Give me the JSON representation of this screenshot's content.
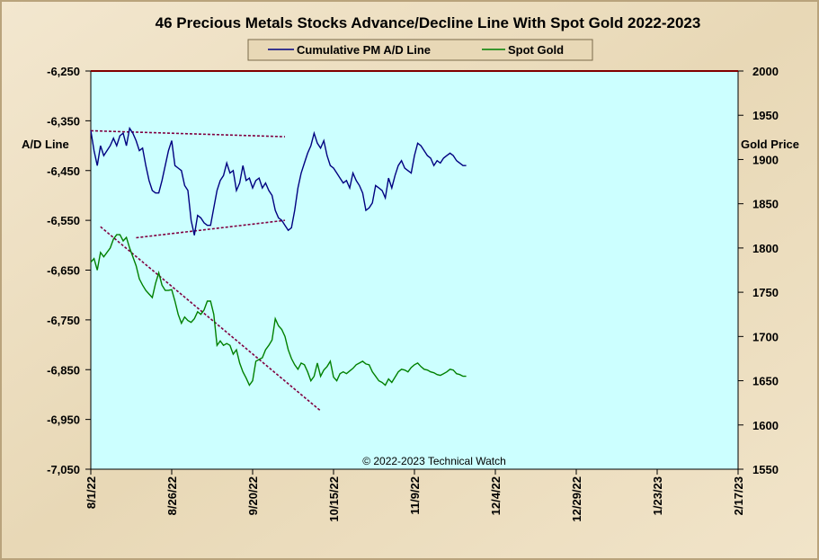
{
  "chart_data": {
    "type": "line",
    "title": "46 Precious Metals Stocks Advance/Decline Line With Spot Gold 2022-2023",
    "ylabel_left": "A/D Line",
    "ylabel_right": "Gold Price",
    "ylim_left": [
      -7050,
      -6250
    ],
    "ylim_right": [
      1550,
      2000
    ],
    "yticks_left": [
      "-6,250",
      "-6,350",
      "-6,450",
      "-6,550",
      "-6,650",
      "-6,750",
      "-6,850",
      "-6,950",
      "-7,050"
    ],
    "yticks_right": [
      "2000",
      "1950",
      "1900",
      "1850",
      "1800",
      "1750",
      "1700",
      "1650",
      "1600",
      "1550"
    ],
    "xticks": [
      "8/1/22",
      "8/26/22",
      "9/20/22",
      "10/15/22",
      "11/9/22",
      "12/4/22",
      "12/29/22",
      "1/23/23",
      "2/17/23"
    ],
    "legend_position": "top-center",
    "copyright": "© 2022-2023  Technical Watch",
    "colors": {
      "plot_bg": "#ccffff",
      "ad_line": "#000080",
      "gold_line": "#008000",
      "trend": "#800040",
      "frame_bg": "#f0e3c8"
    },
    "series": [
      {
        "name": "Cumulative PM A/D Line",
        "axis": "left",
        "x": [
          0,
          1,
          2,
          3,
          4,
          5,
          6,
          7,
          8,
          9,
          10,
          11,
          12,
          13,
          14,
          15,
          16,
          17,
          18,
          19,
          20,
          21,
          22,
          23,
          24,
          25,
          26,
          27,
          28,
          29,
          30,
          31,
          32,
          33,
          34,
          35,
          36,
          37,
          38,
          39,
          40,
          41,
          42,
          43,
          44,
          45,
          46,
          47,
          48,
          49,
          50,
          51,
          52,
          53,
          54,
          55,
          56,
          57,
          58,
          59,
          60,
          61,
          62,
          63,
          64,
          65,
          66,
          67,
          68,
          69,
          70,
          71,
          72,
          73,
          74,
          75,
          76,
          77,
          78,
          79,
          80,
          81,
          82,
          83,
          84,
          85,
          86,
          87,
          88,
          89,
          90,
          91,
          92,
          93,
          94,
          95,
          96,
          97,
          98,
          99,
          100,
          101,
          102,
          103,
          104,
          105,
          106,
          107,
          108,
          109,
          110,
          111,
          112,
          113,
          114,
          115,
          116
        ],
        "y": [
          -6370,
          -6410,
          -6440,
          -6400,
          -6420,
          -6410,
          -6400,
          -6385,
          -6400,
          -6380,
          -6375,
          -6400,
          -6365,
          -6375,
          -6390,
          -6410,
          -6405,
          -6440,
          -6470,
          -6490,
          -6495,
          -6495,
          -6470,
          -6440,
          -6410,
          -6390,
          -6440,
          -6445,
          -6450,
          -6480,
          -6490,
          -6550,
          -6580,
          -6540,
          -6545,
          -6555,
          -6560,
          -6560,
          -6525,
          -6490,
          -6470,
          -6460,
          -6435,
          -6455,
          -6450,
          -6490,
          -6475,
          -6440,
          -6470,
          -6465,
          -6485,
          -6470,
          -6465,
          -6485,
          -6475,
          -6490,
          -6500,
          -6530,
          -6545,
          -6550,
          -6560,
          -6570,
          -6565,
          -6530,
          -6485,
          -6455,
          -6435,
          -6415,
          -6400,
          -6375,
          -6395,
          -6405,
          -6390,
          -6420,
          -6440,
          -6445,
          -6455,
          -6465,
          -6475,
          -6470,
          -6485,
          -6455,
          -6470,
          -6480,
          -6495,
          -6530,
          -6525,
          -6515,
          -6480,
          -6485,
          -6490,
          -6505,
          -6465,
          -6485,
          -6460,
          -6440,
          -6430,
          -6445,
          -6450,
          -6455,
          -6420,
          -6395,
          -6400,
          -6410,
          -6420,
          -6425,
          -6440,
          -6430,
          -6435,
          -6425,
          -6420,
          -6415,
          -6420,
          -6430,
          -6435,
          -6440,
          -6440
        ]
      },
      {
        "name": "Spot Gold",
        "axis": "right",
        "x": [
          0,
          1,
          2,
          3,
          4,
          5,
          6,
          7,
          8,
          9,
          10,
          11,
          12,
          13,
          14,
          15,
          16,
          17,
          18,
          19,
          20,
          21,
          22,
          23,
          24,
          25,
          26,
          27,
          28,
          29,
          30,
          31,
          32,
          33,
          34,
          35,
          36,
          37,
          38,
          39,
          40,
          41,
          42,
          43,
          44,
          45,
          46,
          47,
          48,
          49,
          50,
          51,
          52,
          53,
          54,
          55,
          56,
          57,
          58,
          59,
          60,
          61,
          62,
          63,
          64,
          65,
          66,
          67,
          68,
          69,
          70,
          71,
          72,
          73,
          74,
          75,
          76,
          77,
          78,
          79,
          80,
          81,
          82,
          83,
          84,
          85,
          86,
          87,
          88,
          89,
          90,
          91,
          92,
          93,
          94,
          95,
          96,
          97,
          98,
          99,
          100,
          101,
          102,
          103,
          104,
          105,
          106,
          107,
          108,
          109,
          110,
          111,
          112,
          113,
          114,
          115,
          116
        ],
        "y": [
          1784,
          1788,
          1775,
          1795,
          1790,
          1795,
          1800,
          1810,
          1815,
          1815,
          1808,
          1812,
          1800,
          1790,
          1780,
          1765,
          1758,
          1752,
          1748,
          1744,
          1760,
          1772,
          1758,
          1752,
          1752,
          1753,
          1740,
          1725,
          1715,
          1722,
          1718,
          1716,
          1720,
          1728,
          1725,
          1730,
          1740,
          1740,
          1725,
          1690,
          1695,
          1690,
          1692,
          1690,
          1680,
          1685,
          1670,
          1660,
          1653,
          1645,
          1650,
          1672,
          1674,
          1676,
          1685,
          1690,
          1696,
          1720,
          1712,
          1708,
          1700,
          1685,
          1675,
          1668,
          1663,
          1670,
          1668,
          1660,
          1650,
          1655,
          1670,
          1655,
          1662,
          1666,
          1672,
          1654,
          1650,
          1658,
          1660,
          1658,
          1661,
          1664,
          1668,
          1670,
          1672,
          1669,
          1668,
          1660,
          1655,
          1650,
          1648,
          1645,
          1652,
          1648,
          1654,
          1660,
          1663,
          1662,
          1660,
          1665,
          1668,
          1670,
          1666,
          1663,
          1662,
          1660,
          1659,
          1657,
          1656,
          1658,
          1660,
          1663,
          1662,
          1658,
          1657,
          1655,
          1655
        ]
      }
    ],
    "trendlines": [
      {
        "axis": "left",
        "x": [
          0,
          60
        ],
        "y": [
          -6370,
          -6382
        ]
      },
      {
        "axis": "left",
        "x": [
          14,
          60
        ],
        "y": [
          -6585,
          -6550
        ]
      },
      {
        "axis": "right",
        "x": [
          3,
          71
        ],
        "y": [
          1824,
          1616
        ]
      }
    ]
  }
}
